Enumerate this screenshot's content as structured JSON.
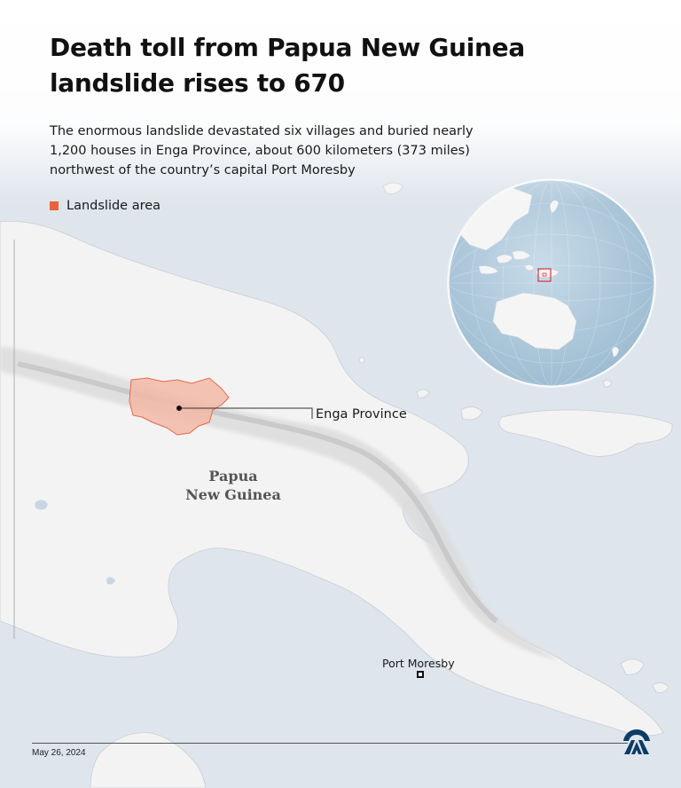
{
  "header": {
    "title_line1": "Death toll from Papua New Guinea",
    "title_line2": "landslide rises to 670",
    "subtitle_line1": "The enormous landslide devastated six villages and buried nearly",
    "subtitle_line2": "1,200 houses in Enga Province, about 600 kilometers (373 miles)",
    "subtitle_line3": "northwest of the country’s capital Port Moresby"
  },
  "legend": {
    "label": "Landslide area",
    "color": "#e8623a"
  },
  "map": {
    "province_label": "Enga Province",
    "country_label_line1": "Papua",
    "country_label_line2": "New Guinea",
    "capital_label": "Port Moresby",
    "colors": {
      "sea": "#dfe5ec",
      "land": "#f3f3f3",
      "landslide_fill": "#f2b9a6",
      "landslide_stroke": "#e46a4a",
      "globe_ocean": "#b7cfe0",
      "locator": "#d9343a"
    },
    "icons": [
      "leader-dot-icon",
      "capital-square-icon",
      "inset-globe-icon"
    ]
  },
  "footer": {
    "date": "May 26, 2024",
    "logo_icon": "anadolu-agency-logo-icon"
  }
}
